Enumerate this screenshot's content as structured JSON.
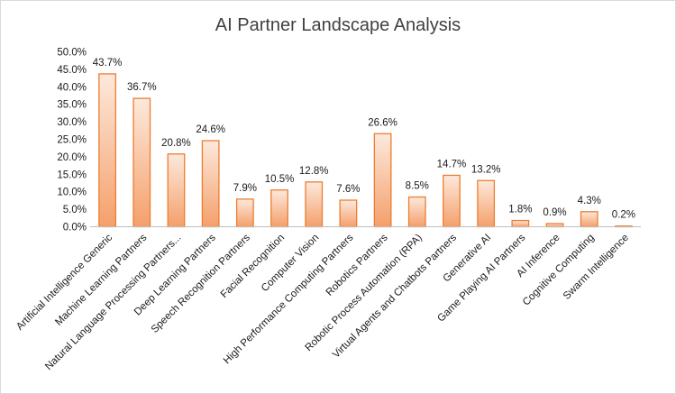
{
  "chart_data": {
    "type": "bar",
    "title": "AI Partner Landscape Analysis",
    "xlabel": "",
    "ylabel": "",
    "ylim": [
      0,
      50
    ],
    "yticks": [
      "0.0%",
      "5.0%",
      "10.0%",
      "15.0%",
      "20.0%",
      "25.0%",
      "30.0%",
      "35.0%",
      "40.0%",
      "45.0%",
      "50.0%"
    ],
    "grid": false,
    "legend": "none",
    "categories": [
      "Artificial Intelligence Generic",
      "Machine Learning Partners",
      "Natural Language Processing Partners...",
      "Deep Learning Partners",
      "Speech Recognition Partners",
      "Facial Recognition",
      "Computer Vision",
      "High Performance Computing Partners",
      "Robotics Partners",
      "Robotic Process Automation (RPA)",
      "Virtual Agents and Chatbots Partners",
      "Generative AI",
      "Game Playing AI Partners",
      "AI Inference",
      "Cognitive Computing",
      "Swarm Intelligence"
    ],
    "values": [
      43.7,
      36.7,
      20.8,
      24.6,
      7.9,
      10.5,
      12.8,
      7.6,
      26.6,
      8.5,
      14.7,
      13.2,
      1.8,
      0.9,
      4.3,
      0.2
    ],
    "data_labels": [
      "43.7%",
      "36.7%",
      "20.8%",
      "24.6%",
      "7.9%",
      "10.5%",
      "12.8%",
      "7.6%",
      "26.6%",
      "8.5%",
      "14.7%",
      "13.2%",
      "1.8%",
      "0.9%",
      "4.3%",
      "0.2%"
    ],
    "colors": {
      "bar_stroke": "#ed7d31",
      "bar_gradient_top": "#fde9dc",
      "bar_gradient_bottom": "#f4a06b",
      "axis": "#bfbfbf"
    }
  }
}
